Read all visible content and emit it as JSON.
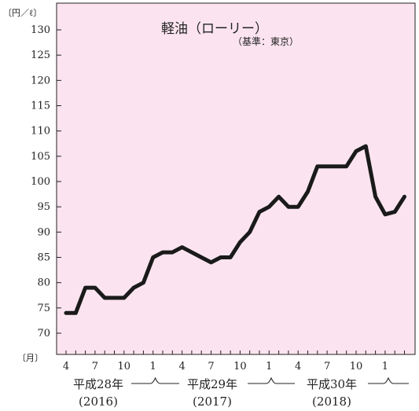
{
  "chart_data": {
    "type": "line",
    "title": "軽油（ローリー）",
    "subtitle": "（基準：東京）",
    "y_unit": "〔円／ℓ〕",
    "x_unit": "〔月〕",
    "ylim": [
      70,
      130
    ],
    "y_ticks": [
      70,
      75,
      80,
      85,
      90,
      95,
      100,
      105,
      110,
      115,
      120,
      125,
      130
    ],
    "x_tick_labels": [
      {
        "index": 0,
        "label": "4"
      },
      {
        "index": 3,
        "label": "7"
      },
      {
        "index": 6,
        "label": "10"
      },
      {
        "index": 9,
        "label": "1"
      },
      {
        "index": 12,
        "label": "4"
      },
      {
        "index": 15,
        "label": "7"
      },
      {
        "index": 18,
        "label": "10"
      },
      {
        "index": 21,
        "label": "1"
      },
      {
        "index": 24,
        "label": "4"
      },
      {
        "index": 27,
        "label": "7"
      },
      {
        "index": 30,
        "label": "10"
      },
      {
        "index": 33,
        "label": "1"
      }
    ],
    "eras": [
      {
        "era": "平成28年",
        "year": "(2016)"
      },
      {
        "era": "平成29年",
        "year": "(2017)"
      },
      {
        "era": "平成30年",
        "year": "(2018)"
      }
    ],
    "grid": false,
    "series": [
      {
        "color": "#1a1a1a",
        "x": [
          0,
          1,
          2,
          3,
          4,
          5,
          6,
          7,
          8,
          9,
          10,
          11,
          12,
          13,
          14,
          15,
          16,
          17,
          18,
          19,
          20,
          21,
          22,
          23,
          24,
          25,
          26,
          27,
          28,
          29,
          30,
          31,
          32,
          33,
          34,
          35
        ],
        "values": [
          74,
          74,
          79,
          79,
          77,
          77,
          77,
          79,
          80,
          85,
          86,
          86,
          87,
          86,
          85,
          84,
          85,
          85,
          88,
          90,
          94,
          95,
          97,
          95,
          95,
          98,
          103,
          103,
          103,
          103,
          106,
          107,
          97,
          93.5,
          94,
          97
        ]
      }
    ]
  },
  "colors": {
    "plot_background": "#fbe4ef",
    "line": "#1a1a1a",
    "axis": "#222222"
  }
}
